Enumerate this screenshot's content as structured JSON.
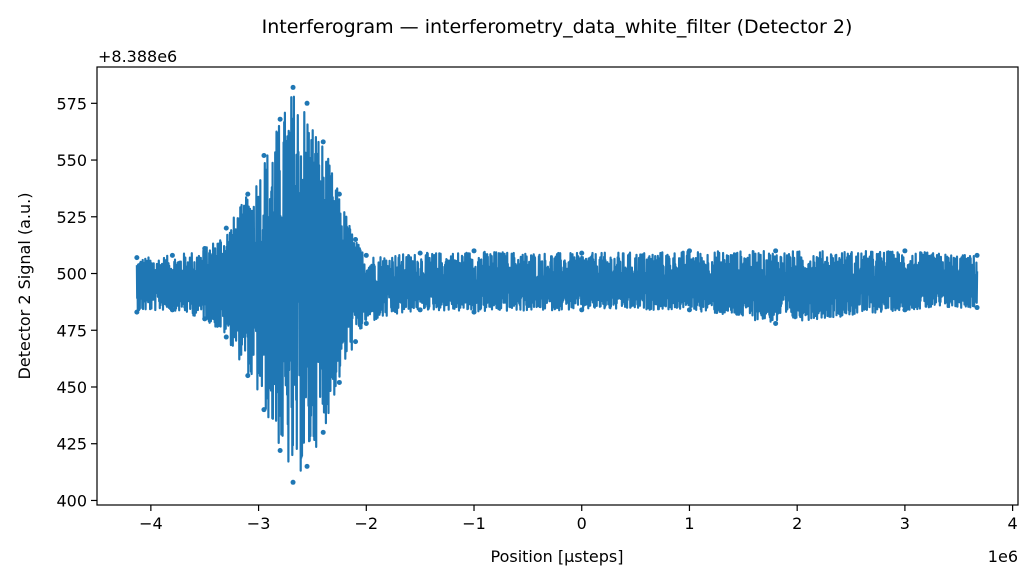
{
  "chart_data": {
    "type": "line",
    "title": "Interferogram — interferometry_data_white_filter (Detector 2)",
    "xlabel": "Position [µsteps]",
    "ylabel": "Detector 2 Signal (a.u.)",
    "x_offset_label": "1e6",
    "y_offset_label": "+8.388e6",
    "x_ticks": [
      -4,
      -3,
      -2,
      -1,
      0,
      1,
      2,
      3,
      4
    ],
    "x_tick_labels": [
      "−4",
      "−3",
      "−2",
      "−1",
      "0",
      "1",
      "2",
      "3",
      "4"
    ],
    "y_ticks": [
      400,
      425,
      450,
      475,
      500,
      525,
      550,
      575
    ],
    "y_tick_labels": [
      "400",
      "425",
      "450",
      "475",
      "500",
      "525",
      "550",
      "575"
    ],
    "xlim": [
      -4.5,
      4.05
    ],
    "ylim": [
      398,
      591
    ],
    "grid": false,
    "legend": "none",
    "series": [
      {
        "color": "#1f77b4",
        "x_range": [
          -4.13,
          3.67
        ],
        "baseline": 494,
        "envelope": [
          {
            "x": -4.13,
            "min": 483,
            "max": 507
          },
          {
            "x": -3.8,
            "min": 484,
            "max": 508
          },
          {
            "x": -3.5,
            "min": 480,
            "max": 511
          },
          {
            "x": -3.3,
            "min": 472,
            "max": 520
          },
          {
            "x": -3.1,
            "min": 455,
            "max": 535
          },
          {
            "x": -2.95,
            "min": 440,
            "max": 552
          },
          {
            "x": -2.8,
            "min": 422,
            "max": 568
          },
          {
            "x": -2.68,
            "min": 408,
            "max": 582
          },
          {
            "x": -2.55,
            "min": 415,
            "max": 575
          },
          {
            "x": -2.4,
            "min": 430,
            "max": 558
          },
          {
            "x": -2.25,
            "min": 452,
            "max": 535
          },
          {
            "x": -2.1,
            "min": 470,
            "max": 515
          },
          {
            "x": -2.0,
            "min": 478,
            "max": 508
          },
          {
            "x": -1.5,
            "min": 484,
            "max": 509
          },
          {
            "x": -1.0,
            "min": 483,
            "max": 510
          },
          {
            "x": 0.0,
            "min": 484,
            "max": 509
          },
          {
            "x": 1.0,
            "min": 484,
            "max": 510
          },
          {
            "x": 1.8,
            "min": 478,
            "max": 510
          },
          {
            "x": 3.0,
            "min": 484,
            "max": 510
          },
          {
            "x": 3.67,
            "min": 485,
            "max": 508
          }
        ]
      }
    ]
  }
}
